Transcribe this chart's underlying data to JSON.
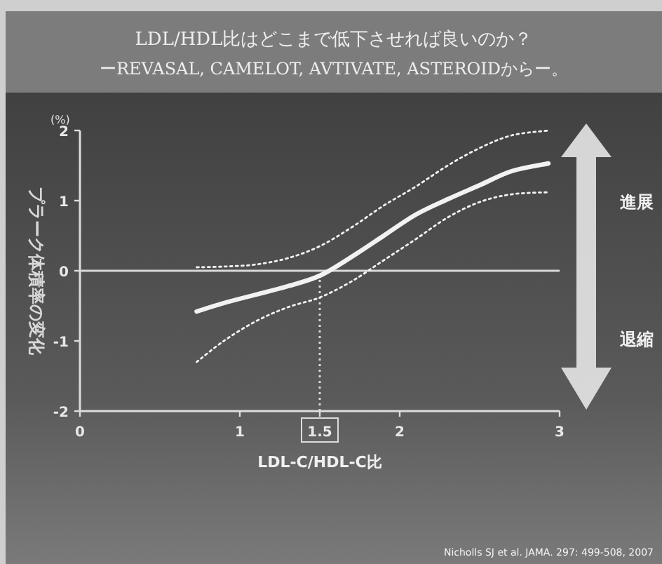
{
  "chart_data": {
    "type": "line",
    "title": "LDL/HDL比はどこまで低下させれば良いのか？",
    "subtitle": "ーREVASAL, CAMELOT, AVTIVATE, ASTEROIDからー。",
    "xlabel": "LDL-C/HDL-C比",
    "ylabel": "プラーク体積率の変化",
    "annotations": [
      "(%)",
      "進展",
      "退縮",
      "Nicholls SJ et al. JAMA. 297: 499-508, 2007"
    ],
    "x": [
      0.73,
      0.9,
      1.1,
      1.3,
      1.5,
      1.7,
      1.9,
      2.1,
      2.3,
      2.5,
      2.7,
      2.93
    ],
    "series": [
      {
        "color": "#f2f2f2",
        "line_style": "dotted",
        "values": [
          0.05,
          0.06,
          0.09,
          0.18,
          0.35,
          0.62,
          0.93,
          1.2,
          1.5,
          1.75,
          1.93,
          2.0
        ]
      },
      {
        "color": "#f2f2f2",
        "line_style": "solid",
        "values": [
          -0.58,
          -0.46,
          -0.34,
          -0.22,
          -0.07,
          0.2,
          0.5,
          0.8,
          1.02,
          1.22,
          1.42,
          1.53
        ]
      },
      {
        "color": "#f2f2f2",
        "line_style": "dotted",
        "values": [
          -1.3,
          -1.0,
          -0.72,
          -0.52,
          -0.38,
          -0.15,
          0.15,
          0.45,
          0.76,
          0.98,
          1.09,
          1.12
        ]
      }
    ],
    "ref_lines": [
      {
        "axis": "y",
        "value": 0,
        "color": "#d8d8d8",
        "line_style": "solid"
      },
      {
        "axis": "x",
        "value": 1.5,
        "color": "#d8d8d8",
        "line_style": "dotted"
      }
    ],
    "xlim": [
      0,
      3
    ],
    "ylim": [
      -2,
      2
    ],
    "xticks": [
      0,
      1,
      1.5,
      2,
      3
    ],
    "yticks": [
      -2,
      -1,
      0,
      1,
      2
    ]
  }
}
